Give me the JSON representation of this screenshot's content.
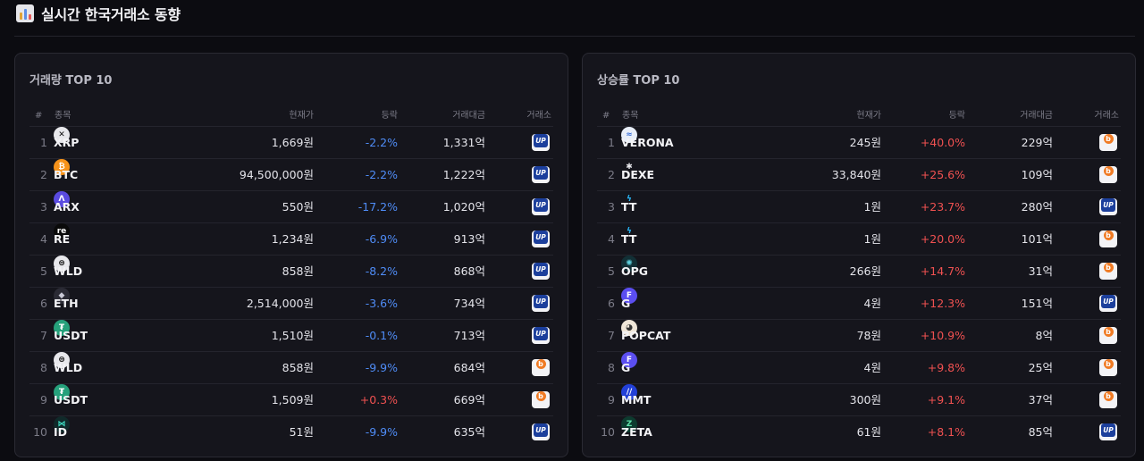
{
  "header": {
    "title": "실시간 한국거래소 동향",
    "icon": "bar-chart-icon"
  },
  "columns": {
    "rank": "#",
    "coin": "종목",
    "price": "현재가",
    "change": "등락",
    "volume": "거래대금",
    "exchange": "거래소"
  },
  "exchange_labels": {
    "upbit": "UP",
    "bithumb": "b"
  },
  "colors": {
    "negative": "#4f8cf6",
    "positive": "#f05151",
    "upbit": "#1c3f9c",
    "bithumb": "#f07b24"
  },
  "panels": [
    {
      "title": "거래량 TOP 10",
      "rows": [
        {
          "rank": "1",
          "symbol": "XRP",
          "icon_label": "✕",
          "icon_bg": "#e8e8ec",
          "icon_fg": "#111",
          "icon": "xrp-icon",
          "price": "1,669원",
          "change": "-2.2%",
          "volume": "1,331억",
          "exchange": "upbit"
        },
        {
          "rank": "2",
          "symbol": "BTC",
          "icon_label": "₿",
          "icon_bg": "#f7931a",
          "icon_fg": "#fff",
          "icon": "bitcoin-icon",
          "price": "94,500,000원",
          "change": "-2.2%",
          "volume": "1,222억",
          "exchange": "upbit"
        },
        {
          "rank": "3",
          "symbol": "ARX",
          "icon_label": "Λ",
          "icon_bg": "#5a4be0",
          "icon_fg": "#fff",
          "icon": "arx-icon",
          "price": "550원",
          "change": "-17.2%",
          "volume": "1,020억",
          "exchange": "upbit"
        },
        {
          "rank": "4",
          "symbol": "RE",
          "icon_label": "re",
          "icon_bg": "#0a0a0a",
          "icon_fg": "#fff",
          "icon": "re-icon",
          "price": "1,234원",
          "change": "-6.9%",
          "volume": "913억",
          "exchange": "upbit"
        },
        {
          "rank": "5",
          "symbol": "WLD",
          "icon_label": "⊜",
          "icon_bg": "#e8e8ec",
          "icon_fg": "#111",
          "icon": "worldcoin-icon",
          "price": "858원",
          "change": "-8.2%",
          "volume": "868억",
          "exchange": "upbit"
        },
        {
          "rank": "6",
          "symbol": "ETH",
          "icon_label": "◆",
          "icon_bg": "#2b2b35",
          "icon_fg": "#c9c9d6",
          "icon": "ethereum-icon",
          "price": "2,514,000원",
          "change": "-3.6%",
          "volume": "734억",
          "exchange": "upbit"
        },
        {
          "rank": "7",
          "symbol": "USDT",
          "icon_label": "₮",
          "icon_bg": "#26a17b",
          "icon_fg": "#fff",
          "icon": "tether-icon",
          "price": "1,510원",
          "change": "-0.1%",
          "volume": "713억",
          "exchange": "upbit"
        },
        {
          "rank": "8",
          "symbol": "WLD",
          "icon_label": "⊜",
          "icon_bg": "#e8e8ec",
          "icon_fg": "#111",
          "icon": "worldcoin-icon",
          "price": "858원",
          "change": "-9.9%",
          "volume": "684억",
          "exchange": "bithumb"
        },
        {
          "rank": "9",
          "symbol": "USDT",
          "icon_label": "₮",
          "icon_bg": "#26a17b",
          "icon_fg": "#fff",
          "icon": "tether-icon",
          "price": "1,509원",
          "change": "+0.3%",
          "volume": "669억",
          "exchange": "bithumb"
        },
        {
          "rank": "10",
          "symbol": "ID",
          "icon_label": "⋈",
          "icon_bg": "#102a2a",
          "icon_fg": "#3fe0c5",
          "icon": "space-id-icon",
          "price": "51원",
          "change": "-9.9%",
          "volume": "635억",
          "exchange": "upbit"
        }
      ]
    },
    {
      "title": "상승률 TOP 10",
      "rows": [
        {
          "rank": "1",
          "symbol": "VERONA",
          "icon_label": "≈",
          "icon_bg": "#e8eef8",
          "icon_fg": "#3a6fd8",
          "icon": "verona-icon",
          "price": "245원",
          "change": "+40.0%",
          "volume": "229억",
          "exchange": "bithumb"
        },
        {
          "rank": "2",
          "symbol": "DEXE",
          "icon_label": "✱",
          "icon_bg": "#15151c",
          "icon_fg": "#e8e8ec",
          "icon": "dexe-icon",
          "price": "33,840원",
          "change": "+25.6%",
          "volume": "109억",
          "exchange": "bithumb"
        },
        {
          "rank": "3",
          "symbol": "TT",
          "icon_label": "ϟ",
          "icon_bg": "#15151c",
          "icon_fg": "#29b6f6",
          "icon": "thundercore-icon",
          "price": "1원",
          "change": "+23.7%",
          "volume": "280억",
          "exchange": "upbit"
        },
        {
          "rank": "4",
          "symbol": "TT",
          "icon_label": "ϟ",
          "icon_bg": "#15151c",
          "icon_fg": "#29b6f6",
          "icon": "thundercore-icon",
          "price": "1원",
          "change": "+20.0%",
          "volume": "101억",
          "exchange": "bithumb"
        },
        {
          "rank": "5",
          "symbol": "OPG",
          "icon_label": "✺",
          "icon_bg": "#123036",
          "icon_fg": "#5fd3e0",
          "icon": "opg-icon",
          "price": "266원",
          "change": "+14.7%",
          "volume": "31억",
          "exchange": "bithumb"
        },
        {
          "rank": "6",
          "symbol": "G",
          "icon_label": "F",
          "icon_bg": "#5b4ef0",
          "icon_fg": "#fff",
          "icon": "gravity-icon",
          "price": "4원",
          "change": "+12.3%",
          "volume": "151억",
          "exchange": "upbit"
        },
        {
          "rank": "7",
          "symbol": "POPCAT",
          "icon_label": "◕",
          "icon_bg": "#efe6d8",
          "icon_fg": "#333",
          "icon": "popcat-icon",
          "price": "78원",
          "change": "+10.9%",
          "volume": "8억",
          "exchange": "bithumb"
        },
        {
          "rank": "8",
          "symbol": "G",
          "icon_label": "F",
          "icon_bg": "#5b4ef0",
          "icon_fg": "#fff",
          "icon": "gravity-icon",
          "price": "4원",
          "change": "+9.8%",
          "volume": "25억",
          "exchange": "bithumb"
        },
        {
          "rank": "9",
          "symbol": "MMT",
          "icon_label": "//",
          "icon_bg": "#2240d8",
          "icon_fg": "#fff",
          "icon": "mmt-icon",
          "price": "300원",
          "change": "+9.1%",
          "volume": "37억",
          "exchange": "bithumb"
        },
        {
          "rank": "10",
          "symbol": "ZETA",
          "icon_label": "Z",
          "icon_bg": "#0d3b2f",
          "icon_fg": "#5ee0a8",
          "icon": "zetachain-icon",
          "price": "61원",
          "change": "+8.1%",
          "volume": "85억",
          "exchange": "upbit"
        }
      ]
    }
  ]
}
